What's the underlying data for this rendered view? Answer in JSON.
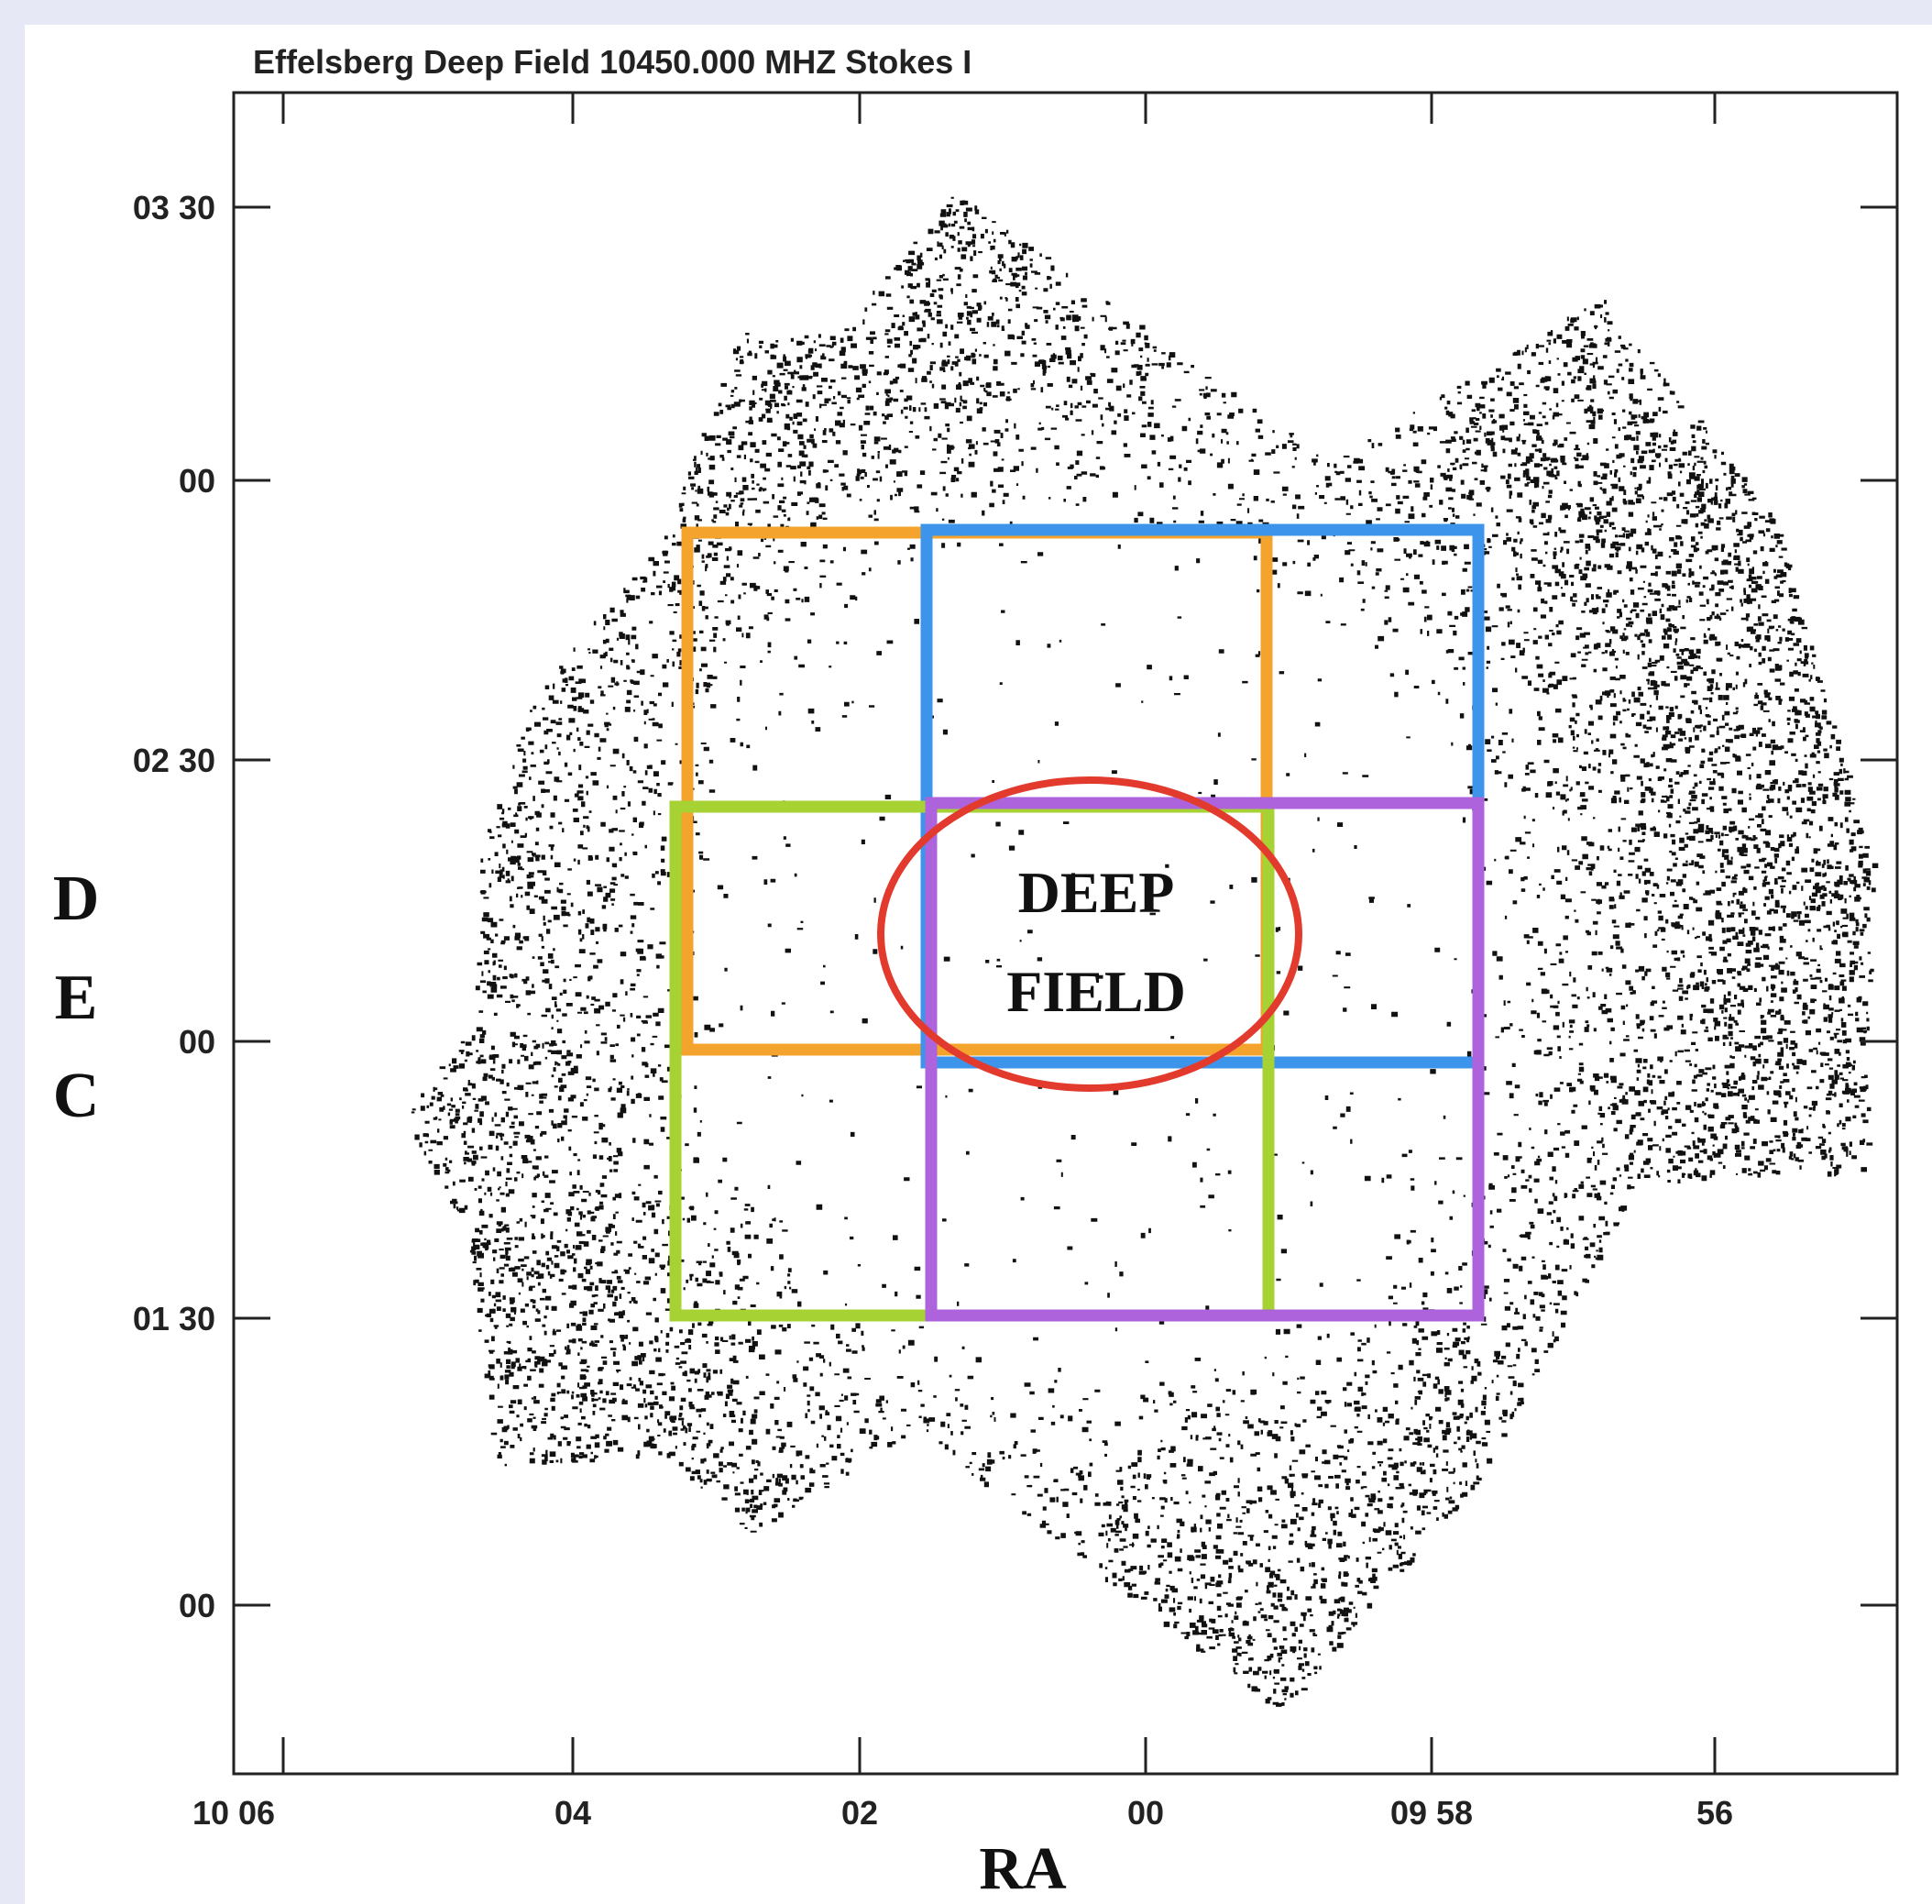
{
  "header": {
    "title": "Effelsberg Deep Field  10450.000 MHZ  Stokes I"
  },
  "axes": {
    "x": {
      "label": "RA",
      "ticks": [
        "10 06",
        "04",
        "02",
        "00",
        "09 58",
        "56"
      ]
    },
    "y": {
      "label": [
        "D",
        "E",
        "C"
      ],
      "ticks": [
        "03 30",
        "00",
        "02 30",
        "00",
        "01 30",
        "00"
      ]
    }
  },
  "annotation": {
    "lines": [
      "DEEP",
      "FIELD"
    ]
  }
}
